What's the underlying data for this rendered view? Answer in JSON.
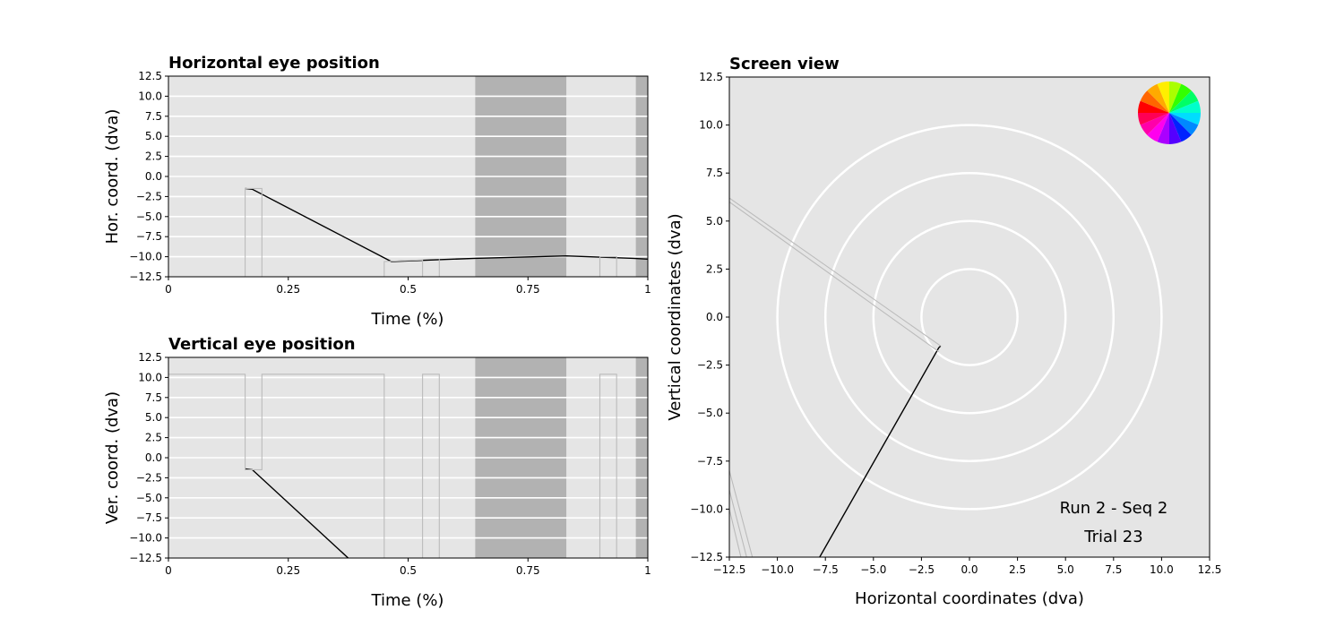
{
  "chart_data": [
    {
      "type": "line",
      "title": "Horizontal eye position",
      "xlabel": "Time (%)",
      "ylabel": "Hor. coord. (dva)",
      "xlim": [
        0,
        1
      ],
      "ylim": [
        -12.5,
        12.5
      ],
      "xticks": [
        0,
        0.25,
        0.5,
        0.75,
        1
      ],
      "xtick_labels": [
        "0",
        "0.25",
        "0.5",
        "0.75",
        "1"
      ],
      "yticks": [
        12.5,
        10.0,
        7.5,
        5.0,
        2.5,
        0.0,
        -2.5,
        -5.0,
        -7.5,
        -10.0,
        -12.5
      ],
      "ytick_labels": [
        "12.5",
        "10.0",
        "7.5",
        "5.0",
        "2.5",
        "0.0",
        "−2.5",
        "−5.0",
        "−7.5",
        "−10.0",
        "−12.5"
      ],
      "grid": "horizontal",
      "background": "#e5e5e5",
      "shaded_intervals": [
        [
          0.64,
          0.83
        ],
        [
          0.975,
          1.0
        ]
      ],
      "shade_color": "#b2b2b2",
      "series": [
        {
          "color": "#000000",
          "x": [
            0.16,
            0.175,
            0.465,
            0.64,
            0.83,
            0.97,
            1.0
          ],
          "y": [
            -1.5,
            -1.6,
            -10.6,
            -10.2,
            -9.9,
            -10.2,
            -10.3
          ]
        },
        {
          "color": "#bbbbbb",
          "x": [
            0.16,
            0.16,
            0.175,
            0.195,
            0.195
          ],
          "y": [
            -12.5,
            -1.5,
            -1.5,
            -1.5,
            -12.5
          ]
        },
        {
          "color": "#bbbbbb",
          "x": [
            0.45,
            0.45,
            0.53,
            0.53
          ],
          "y": [
            -12.5,
            -10.6,
            -10.4,
            -12.5
          ]
        },
        {
          "color": "#bbbbbb",
          "x": [
            0.565,
            0.565
          ],
          "y": [
            -12.5,
            -10.3
          ]
        },
        {
          "color": "#bbbbbb",
          "x": [
            0.9,
            0.9,
            0.935,
            0.935
          ],
          "y": [
            -12.5,
            -10.0,
            -10.0,
            -12.5
          ]
        }
      ]
    },
    {
      "type": "line",
      "title": "Vertical eye position",
      "xlabel": "Time (%)",
      "ylabel": "Ver. coord. (dva)",
      "xlim": [
        0,
        1
      ],
      "ylim": [
        -12.5,
        12.5
      ],
      "xticks": [
        0,
        0.25,
        0.5,
        0.75,
        1
      ],
      "xtick_labels": [
        "0",
        "0.25",
        "0.5",
        "0.75",
        "1"
      ],
      "yticks": [
        12.5,
        10.0,
        7.5,
        5.0,
        2.5,
        0.0,
        -2.5,
        -5.0,
        -7.5,
        -10.0,
        -12.5
      ],
      "ytick_labels": [
        "12.5",
        "10.0",
        "7.5",
        "5.0",
        "2.5",
        "0.0",
        "−2.5",
        "−5.0",
        "−7.5",
        "−10.0",
        "−12.5"
      ],
      "grid": "horizontal",
      "background": "#e5e5e5",
      "shaded_intervals": [
        [
          0.64,
          0.83
        ],
        [
          0.975,
          1.0
        ]
      ],
      "shade_color": "#b2b2b2",
      "series": [
        {
          "color": "#000000",
          "x": [
            0.16,
            0.175,
            0.375
          ],
          "y": [
            -1.4,
            -1.5,
            -12.5
          ]
        },
        {
          "color": "#bbbbbb",
          "x": [
            0.0,
            0.16,
            0.16,
            0.195,
            0.195,
            0.45,
            0.45,
            0.53,
            0.53,
            0.565,
            0.565,
            0.9,
            0.9,
            0.935,
            0.935
          ],
          "y": [
            10.4,
            10.4,
            -1.5,
            -1.5,
            10.4,
            10.4,
            -12.5,
            -12.5,
            10.4,
            10.4,
            -12.5,
            -12.5,
            10.4,
            10.4,
            -12.5
          ]
        }
      ]
    },
    {
      "type": "scatter",
      "title": "Screen view",
      "xlabel": "Horizontal coordinates (dva)",
      "ylabel": "Vertical coordinates (dva)",
      "xlim": [
        -12.5,
        12.5
      ],
      "ylim": [
        -12.5,
        12.5
      ],
      "xticks": [
        -12.5,
        -10.0,
        -7.5,
        -5.0,
        -2.5,
        0.0,
        2.5,
        5.0,
        7.5,
        10.0,
        12.5
      ],
      "xtick_labels": [
        "−12.5",
        "−10.0",
        "−7.5",
        "−5.0",
        "−2.5",
        "0.0",
        "2.5",
        "5.0",
        "7.5",
        "10.0",
        "12.5"
      ],
      "yticks": [
        12.5,
        10.0,
        7.5,
        5.0,
        2.5,
        0.0,
        -2.5,
        -5.0,
        -7.5,
        -10.0,
        -12.5
      ],
      "ytick_labels": [
        "12.5",
        "10.0",
        "7.5",
        "5.0",
        "2.5",
        "0.0",
        "−2.5",
        "−5.0",
        "−7.5",
        "−10.0",
        "−12.5"
      ],
      "background": "#e5e5e5",
      "circle_radii": [
        2.5,
        5.0,
        7.5,
        10.0
      ],
      "series": [
        {
          "color": "#000000",
          "x": [
            -1.5,
            -1.6,
            -7.8
          ],
          "y": [
            -1.5,
            -1.6,
            -12.5
          ]
        },
        {
          "color": "#bbbbbb",
          "x": [
            -12.5,
            -1.5
          ],
          "y": [
            6.2,
            -1.5
          ]
        },
        {
          "color": "#bbbbbb",
          "x": [
            -12.5,
            -1.6
          ],
          "y": [
            6.0,
            -1.8
          ]
        },
        {
          "color": "#bbbbbb",
          "x": [
            -12.5,
            -11.3
          ],
          "y": [
            -8.0,
            -12.5
          ]
        },
        {
          "color": "#bbbbbb",
          "x": [
            -12.5,
            -11.6
          ],
          "y": [
            -9.0,
            -12.5
          ]
        },
        {
          "color": "#bbbbbb",
          "x": [
            -12.5,
            -11.9
          ],
          "y": [
            -10.0,
            -12.5
          ]
        }
      ],
      "color_wheel": [
        "#ff0000",
        "#ff6600",
        "#ffaa00",
        "#ffee00",
        "#aaff00",
        "#33ff00",
        "#00ff66",
        "#00ffcc",
        "#00ddff",
        "#0088ff",
        "#0022ff",
        "#5500ff",
        "#aa00ff",
        "#ff00ee",
        "#ff00aa",
        "#ff0055"
      ],
      "annotations": [
        "Run 2 - Seq 2",
        "Trial 23"
      ]
    }
  ]
}
